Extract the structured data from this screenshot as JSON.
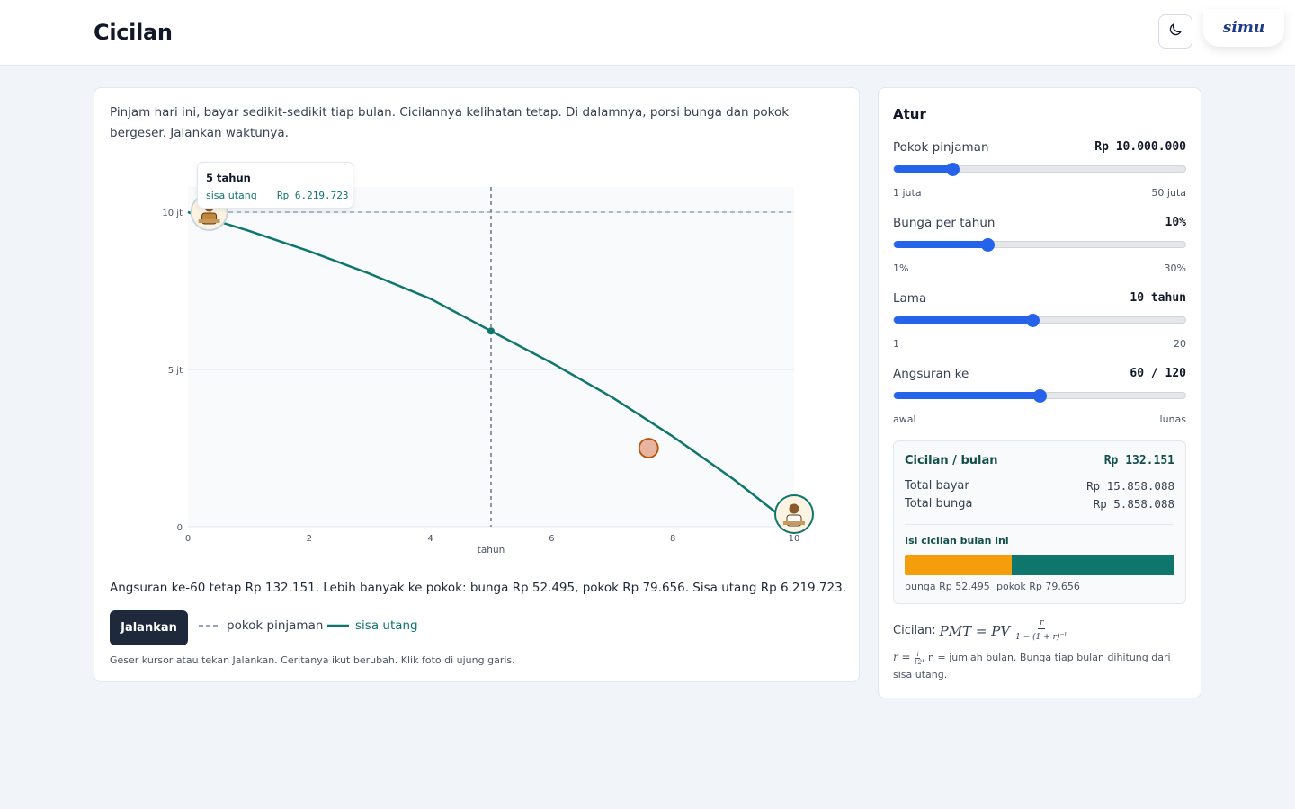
{
  "header": {
    "title": "Cicilan",
    "theme_toggle_icon": "moon-icon",
    "logo_text": "simu"
  },
  "main": {
    "intro": "Pinjam hari ini, bayar sedikit-sedikit tiap bulan. Cicilannya kelihatan tetap. Di dalamnya, porsi bunga dan pokok bergeser. Jalankan waktunya.",
    "tooltip": {
      "title": "5 tahun",
      "label": "sisa utang",
      "value": "Rp 6.219.723"
    },
    "summary": "Angsuran ke-60 tetap Rp 132.151. Lebih banyak ke pokok: bunga Rp 52.495, pokok Rp 79.656. Sisa utang Rp 6.219.723.",
    "run_button": "Jalankan",
    "legend": {
      "principal": "pokok pinjaman",
      "balance": "sisa utang"
    },
    "hint": "Geser kursor atau tekan Jalankan. Ceritanya ikut berubah. Klik foto di ujung garis."
  },
  "chart_data": {
    "type": "line",
    "title": "",
    "xlabel": "tahun",
    "ylabel": "",
    "xlim": [
      0,
      10
    ],
    "ylim": [
      0,
      10.8
    ],
    "x_ticks": [
      0,
      2,
      4,
      6,
      8,
      10
    ],
    "x_tick_labels": [
      "0",
      "2",
      "4",
      "6",
      "8",
      "10"
    ],
    "y_ticks": [
      0,
      5,
      10
    ],
    "y_tick_labels": [
      "0",
      "5 jt",
      "10 jt"
    ],
    "grid": true,
    "reference_line": {
      "name": "pokok pinjaman",
      "y": 10,
      "style": "dashed",
      "color": "#94a3b8"
    },
    "series": [
      {
        "name": "sisa utang",
        "color": "#0f766e",
        "x": [
          0,
          1,
          2,
          3,
          4,
          5,
          6,
          7,
          8,
          9,
          10
        ],
        "y": [
          10,
          9.41,
          8.76,
          8.04,
          7.25,
          6.22,
          5.21,
          4.11,
          2.87,
          1.51,
          0
        ]
      }
    ],
    "cursor": {
      "x": 5,
      "y": 6.219723
    },
    "marker": {
      "x": 7.6,
      "y": 2.5,
      "color": "#e8b4a0"
    },
    "avatars": [
      {
        "x": 0.35,
        "y": 10,
        "icon": "borrower-avatar-icon"
      },
      {
        "x": 10,
        "y": 0.4,
        "icon": "paid-off-avatar-icon"
      }
    ]
  },
  "sidebar": {
    "title": "Atur",
    "controls": [
      {
        "label": "Pokok pinjaman",
        "value": "Rp 10.000.000",
        "min": "1 juta",
        "max": "50 juta",
        "level": 0.2
      },
      {
        "label": "Bunga per tahun",
        "value": "10%",
        "min": "1%",
        "max": "30%",
        "level": 0.32
      },
      {
        "label": "Lama",
        "value": "10 tahun",
        "min": "1",
        "max": "20",
        "level": 0.475
      },
      {
        "label": "Angsuran ke",
        "value": "60 / 120",
        "min": "awal",
        "max": "lunas",
        "level": 0.5
      }
    ],
    "info": {
      "head_label": "Cicilan / bulan",
      "head_value": "Rp 132.151",
      "total_pay_label": "Total bayar",
      "total_pay_value": "Rp 15.858.088",
      "total_interest_label": "Total bunga",
      "total_interest_value": "Rp 5.858.088",
      "split_title": "Isi cicilan bulan ini",
      "interest_share": 0.397,
      "interest_label": "bunga Rp 52.495",
      "principal_label": "pokok Rp 79.656",
      "interest_color": "#f59e0b",
      "principal_color": "#0f766e"
    },
    "formula_label": "Cicilan:",
    "formula_lhs": "PMT = PV",
    "formula_num": "r",
    "formula_den": "1 − (1 + r)",
    "formula_exp": "−n",
    "note_r": "r =",
    "note_i": "i",
    "note_12": "12",
    "note_text": ", n = jumlah bulan. Bunga tiap bulan dihitung dari sisa utang."
  }
}
